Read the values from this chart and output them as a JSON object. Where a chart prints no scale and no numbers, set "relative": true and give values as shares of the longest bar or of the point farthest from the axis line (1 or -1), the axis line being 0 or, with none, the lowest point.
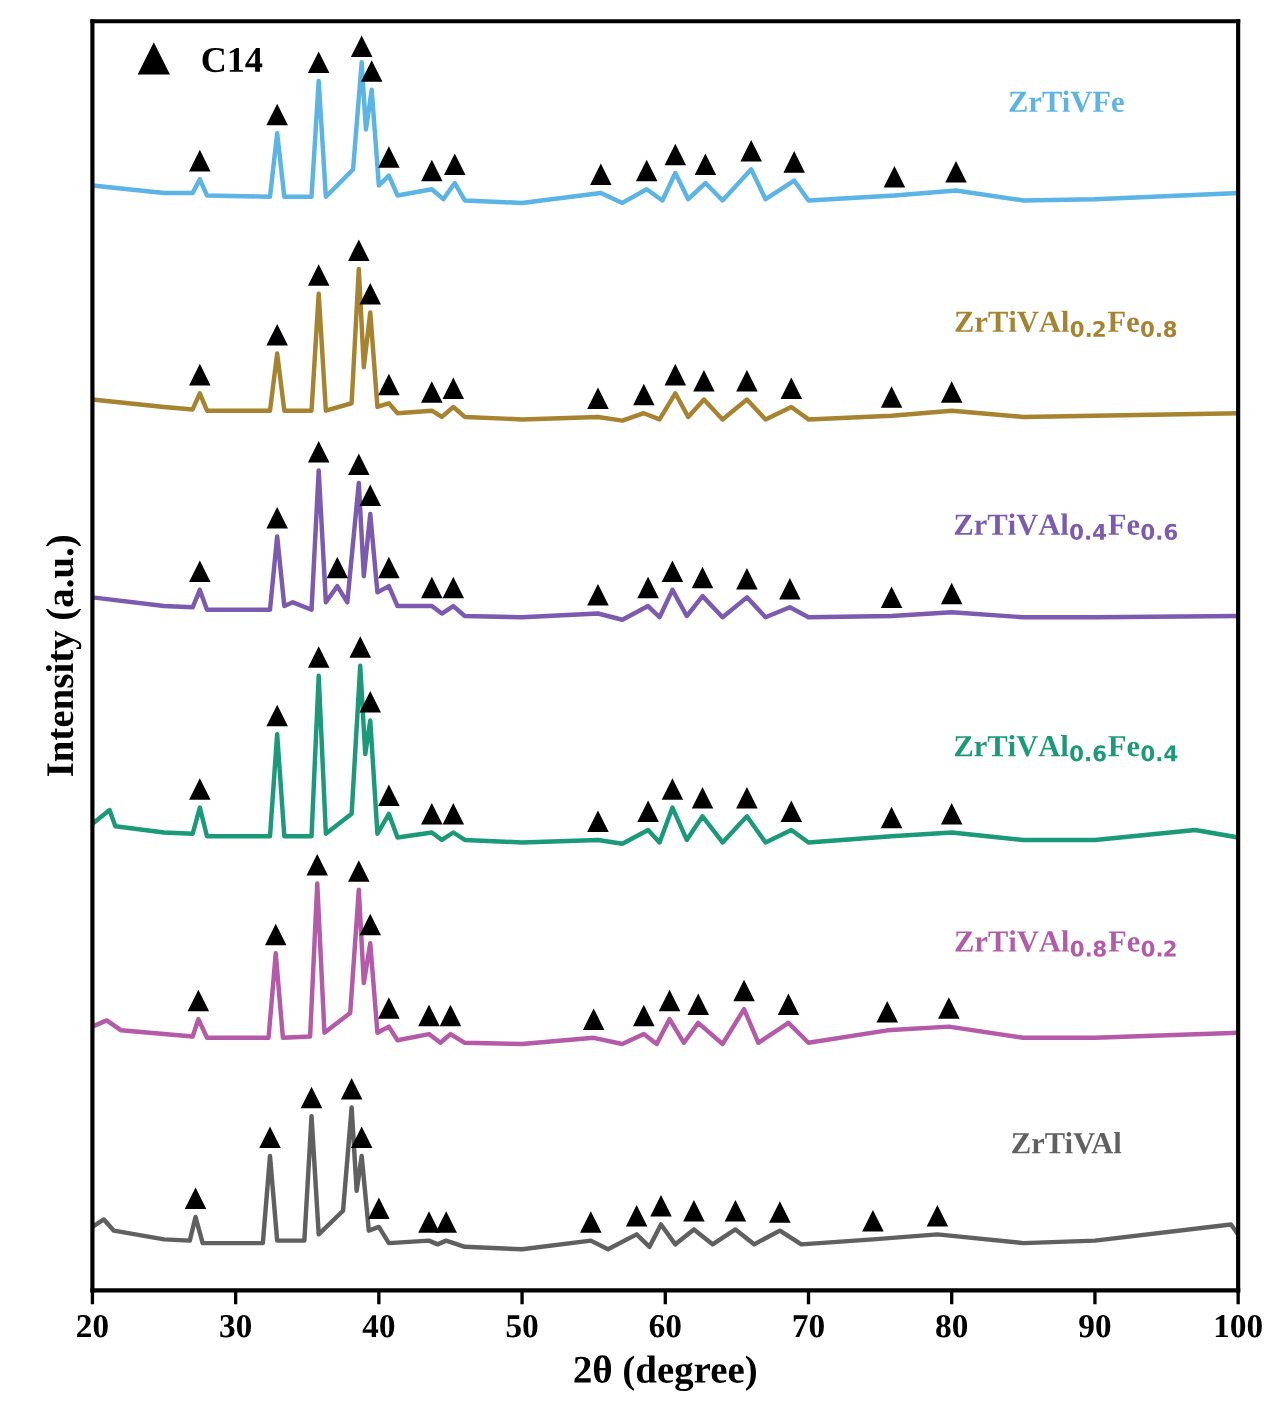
{
  "chart_data": {
    "type": "line",
    "relative": true,
    "xlabel": "2θ (degree)",
    "ylabel": "Intensity (a.u.)",
    "xlim": [
      20,
      100
    ],
    "xticks": [
      20,
      30,
      40,
      50,
      60,
      70,
      80,
      90,
      100
    ],
    "grid": false,
    "legend": "top left",
    "tick_labels": "x",
    "series": [
      {
        "name": "ZrTiVFe",
        "color": "#5ab4e5",
        "x": [
          20,
          25,
          27,
          27.5,
          28,
          32.4,
          32.9,
          33.4,
          35.3,
          35.8,
          36.3,
          38.2,
          38.8,
          39.1,
          39.5,
          40.0,
          40.7,
          41.3,
          43.7,
          44.5,
          45.3,
          46,
          50,
          55.5,
          57,
          58.7,
          59.8,
          60.7,
          61.6,
          62.8,
          64,
          66,
          67,
          69,
          70,
          76,
          80.3,
          85,
          90,
          100
        ],
        "values": [
          0.888,
          0.882,
          0.882,
          0.893,
          0.88,
          0.879,
          0.93,
          0.879,
          0.879,
          0.972,
          0.879,
          0.901,
          0.987,
          0.933,
          0.965,
          0.888,
          0.896,
          0.88,
          0.885,
          0.877,
          0.89,
          0.876,
          0.874,
          0.882,
          0.874,
          0.885,
          0.876,
          0.898,
          0.877,
          0.89,
          0.876,
          0.901,
          0.877,
          0.892,
          0.876,
          0.88,
          0.884,
          0.876,
          0.877,
          0.882
        ]
      },
      {
        "name": "ZrTiVAl$_{0.2}$Fe$_{0.8}$",
        "color": "#a8832f",
        "x": [
          20,
          25,
          27,
          27.5,
          28,
          32.4,
          32.9,
          33.4,
          35.3,
          35.8,
          36.3,
          38.1,
          38.6,
          38.95,
          39.4,
          39.9,
          40.7,
          41.3,
          43.7,
          44.4,
          45.2,
          46,
          50,
          55.3,
          57,
          58.5,
          59.6,
          60.7,
          61.6,
          62.7,
          64,
          65.7,
          67,
          68.8,
          70,
          75.8,
          80,
          85,
          90,
          100
        ],
        "values": [
          0.716,
          0.71,
          0.708,
          0.721,
          0.707,
          0.707,
          0.753,
          0.707,
          0.707,
          0.801,
          0.707,
          0.713,
          0.821,
          0.742,
          0.786,
          0.71,
          0.713,
          0.705,
          0.707,
          0.702,
          0.71,
          0.702,
          0.7,
          0.702,
          0.699,
          0.705,
          0.7,
          0.721,
          0.702,
          0.716,
          0.7,
          0.716,
          0.7,
          0.71,
          0.7,
          0.703,
          0.707,
          0.702,
          0.703,
          0.705
        ]
      },
      {
        "name": "ZrTiVAl$_{0.4}$Fe$_{0.6}$",
        "color": "#7b5ab0",
        "x": [
          20,
          25,
          27,
          27.5,
          28,
          32.4,
          32.9,
          33.4,
          34,
          35.3,
          35.8,
          36.3,
          37.1,
          37.8,
          38.6,
          38.95,
          39.4,
          39.9,
          40.7,
          41.3,
          43.7,
          44.4,
          45.2,
          46,
          50,
          55.3,
          57,
          58.8,
          59.6,
          60.5,
          61.5,
          62.6,
          64,
          65.7,
          67,
          68.7,
          70,
          75.8,
          80,
          85,
          90,
          100
        ],
        "values": [
          0.557,
          0.55,
          0.549,
          0.563,
          0.547,
          0.547,
          0.606,
          0.55,
          0.553,
          0.547,
          0.659,
          0.553,
          0.566,
          0.553,
          0.649,
          0.574,
          0.624,
          0.561,
          0.566,
          0.55,
          0.55,
          0.544,
          0.55,
          0.542,
          0.541,
          0.544,
          0.539,
          0.55,
          0.541,
          0.563,
          0.542,
          0.558,
          0.541,
          0.557,
          0.541,
          0.549,
          0.541,
          0.542,
          0.545,
          0.541,
          0.541,
          0.542
        ]
      },
      {
        "name": "ZrTiVAl$_{0.6}$Fe$_{0.4}$",
        "color": "#1a9a78",
        "x": [
          20,
          21.2,
          21.6,
          25,
          27,
          27.5,
          28,
          32.4,
          32.9,
          33.4,
          35.3,
          35.8,
          36.3,
          38.1,
          38.7,
          39.05,
          39.4,
          39.9,
          40.7,
          41.3,
          43.7,
          44.4,
          45.2,
          46,
          50,
          55.3,
          57,
          58.8,
          59.6,
          60.5,
          61.5,
          62.6,
          64,
          65.7,
          67,
          68.8,
          70,
          75.8,
          80,
          85,
          90,
          97,
          100
        ],
        "values": [
          0.375,
          0.386,
          0.373,
          0.368,
          0.367,
          0.388,
          0.365,
          0.365,
          0.447,
          0.365,
          0.365,
          0.494,
          0.367,
          0.383,
          0.502,
          0.431,
          0.458,
          0.367,
          0.383,
          0.364,
          0.368,
          0.362,
          0.368,
          0.362,
          0.36,
          0.362,
          0.359,
          0.37,
          0.36,
          0.388,
          0.362,
          0.381,
          0.36,
          0.381,
          0.36,
          0.37,
          0.36,
          0.365,
          0.368,
          0.362,
          0.362,
          0.37,
          0.364
        ]
      },
      {
        "name": "ZrTiVAl$_{0.8}$Fe$_{0.2}$",
        "color": "#b45aa8",
        "x": [
          20,
          21,
          22,
          27,
          27.4,
          28,
          32.3,
          32.8,
          33.3,
          35.2,
          35.7,
          36.2,
          38.0,
          38.6,
          38.95,
          39.4,
          39.9,
          40.7,
          41.3,
          43.5,
          44.3,
          45,
          46,
          50,
          55,
          57,
          58.5,
          59.4,
          60.3,
          61.3,
          62.3,
          64,
          65.5,
          66.5,
          68.6,
          70,
          75.5,
          79.8,
          85,
          90,
          100
        ],
        "values": [
          0.212,
          0.217,
          0.209,
          0.204,
          0.218,
          0.203,
          0.203,
          0.271,
          0.203,
          0.204,
          0.327,
          0.207,
          0.223,
          0.322,
          0.247,
          0.279,
          0.207,
          0.212,
          0.201,
          0.206,
          0.199,
          0.206,
          0.199,
          0.198,
          0.203,
          0.198,
          0.206,
          0.198,
          0.218,
          0.199,
          0.215,
          0.198,
          0.226,
          0.199,
          0.215,
          0.199,
          0.209,
          0.212,
          0.203,
          0.203,
          0.207
        ]
      },
      {
        "name": "ZrTiVAl",
        "color": "#606060",
        "x": [
          20,
          20.8,
          21.5,
          25,
          26.8,
          27.2,
          27.7,
          31.9,
          32.4,
          32.9,
          34.8,
          35.3,
          35.8,
          37.5,
          38.1,
          38.45,
          38.8,
          39.3,
          40,
          40.7,
          43.5,
          44.1,
          44.7,
          46,
          50,
          54.8,
          56,
          58,
          58.9,
          59.7,
          60.7,
          62,
          63.3,
          64.9,
          66.2,
          68,
          69.5,
          74.5,
          79,
          85,
          90,
          99.5,
          100
        ],
        "values": [
          0.051,
          0.057,
          0.048,
          0.041,
          0.04,
          0.059,
          0.038,
          0.038,
          0.108,
          0.04,
          0.04,
          0.14,
          0.045,
          0.064,
          0.147,
          0.08,
          0.108,
          0.048,
          0.051,
          0.038,
          0.04,
          0.037,
          0.04,
          0.035,
          0.033,
          0.04,
          0.033,
          0.045,
          0.035,
          0.053,
          0.037,
          0.049,
          0.037,
          0.049,
          0.037,
          0.048,
          0.037,
          0.041,
          0.045,
          0.038,
          0.04,
          0.053,
          0.045
        ]
      },
      {
        "name": "C14",
        "type": "scatter",
        "marker": "triangle",
        "color": "#000000",
        "x": [
          27.5,
          32.9,
          35.8,
          38.8,
          39.5,
          40.7,
          43.7,
          45.3,
          55.5,
          58.7,
          60.7,
          62.8,
          66,
          69,
          76,
          80.3,
          27.5,
          32.9,
          35.8,
          38.6,
          39.4,
          40.7,
          43.7,
          45.2,
          55.3,
          58.5,
          60.7,
          62.7,
          65.7,
          68.8,
          75.8,
          80,
          27.5,
          32.9,
          35.8,
          37.1,
          38.6,
          39.4,
          40.7,
          43.7,
          45.2,
          55.3,
          58.8,
          60.5,
          62.6,
          65.7,
          68.7,
          75.8,
          80,
          27.5,
          32.9,
          35.8,
          38.7,
          39.4,
          40.7,
          43.7,
          45.2,
          55.3,
          58.8,
          60.5,
          62.6,
          65.7,
          68.8,
          75.8,
          80,
          27.4,
          32.8,
          35.7,
          38.6,
          39.4,
          40.7,
          43.5,
          45,
          55,
          58.5,
          60.3,
          62.3,
          65.5,
          68.6,
          75.5,
          79.8,
          27.2,
          32.4,
          35.3,
          38.1,
          38.8,
          40,
          43.5,
          44.7,
          54.8,
          58,
          59.7,
          62,
          64.9,
          68,
          74.5,
          79
        ],
        "values": [
          0.908,
          0.945,
          0.987,
          1.0,
          0.98,
          0.911,
          0.9,
          0.905,
          0.897,
          0.9,
          0.913,
          0.905,
          0.916,
          0.907,
          0.895,
          0.899,
          0.736,
          0.768,
          0.816,
          0.836,
          0.801,
          0.728,
          0.722,
          0.725,
          0.717,
          0.72,
          0.736,
          0.731,
          0.731,
          0.725,
          0.718,
          0.722,
          0.578,
          0.621,
          0.674,
          0.581,
          0.664,
          0.639,
          0.581,
          0.565,
          0.565,
          0.559,
          0.565,
          0.578,
          0.573,
          0.572,
          0.564,
          0.557,
          0.56,
          0.403,
          0.462,
          0.509,
          0.517,
          0.473,
          0.398,
          0.383,
          0.383,
          0.377,
          0.385,
          0.403,
          0.396,
          0.396,
          0.385,
          0.38,
          0.383,
          0.233,
          0.286,
          0.342,
          0.337,
          0.294,
          0.227,
          0.221,
          0.221,
          0.218,
          0.221,
          0.233,
          0.23,
          0.241,
          0.23,
          0.224,
          0.227,
          0.074,
          0.123,
          0.155,
          0.162,
          0.123,
          0.066,
          0.055,
          0.055,
          0.055,
          0.06,
          0.068,
          0.064,
          0.064,
          0.063,
          0.056,
          0.06
        ]
      }
    ]
  }
}
